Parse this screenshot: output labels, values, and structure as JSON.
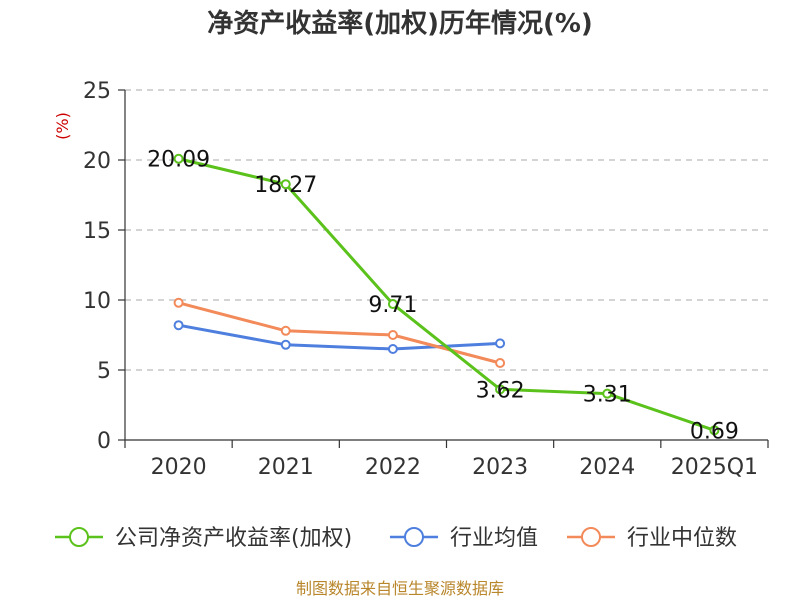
{
  "chart_data": {
    "type": "line",
    "title": "净资产收益率(加权)历年情况(%)",
    "y_unit": "(%)",
    "categories": [
      "2020",
      "2021",
      "2022",
      "2023",
      "2024",
      "2025Q1"
    ],
    "ylim": [
      0,
      25
    ],
    "yticks": [
      0,
      5,
      10,
      15,
      20,
      25
    ],
    "grid": true,
    "legend_position": "bottom",
    "series": [
      {
        "name": "公司净资产收益率(加权)",
        "color": "#5bc21c",
        "values": [
          20.09,
          18.27,
          9.71,
          3.62,
          3.31,
          0.69
        ],
        "labels": [
          "20.09",
          "18.27",
          "9.71",
          "3.62",
          "3.31",
          "0.69"
        ]
      },
      {
        "name": "行业均值",
        "color": "#4f7fde",
        "values": [
          8.2,
          6.8,
          6.5,
          6.9,
          null,
          null
        ]
      },
      {
        "name": "行业中位数",
        "color": "#f28a5a",
        "values": [
          9.8,
          7.8,
          7.5,
          5.5,
          null,
          null
        ]
      }
    ]
  },
  "footer": {
    "source": "制图数据来自恒生聚源数据库"
  }
}
